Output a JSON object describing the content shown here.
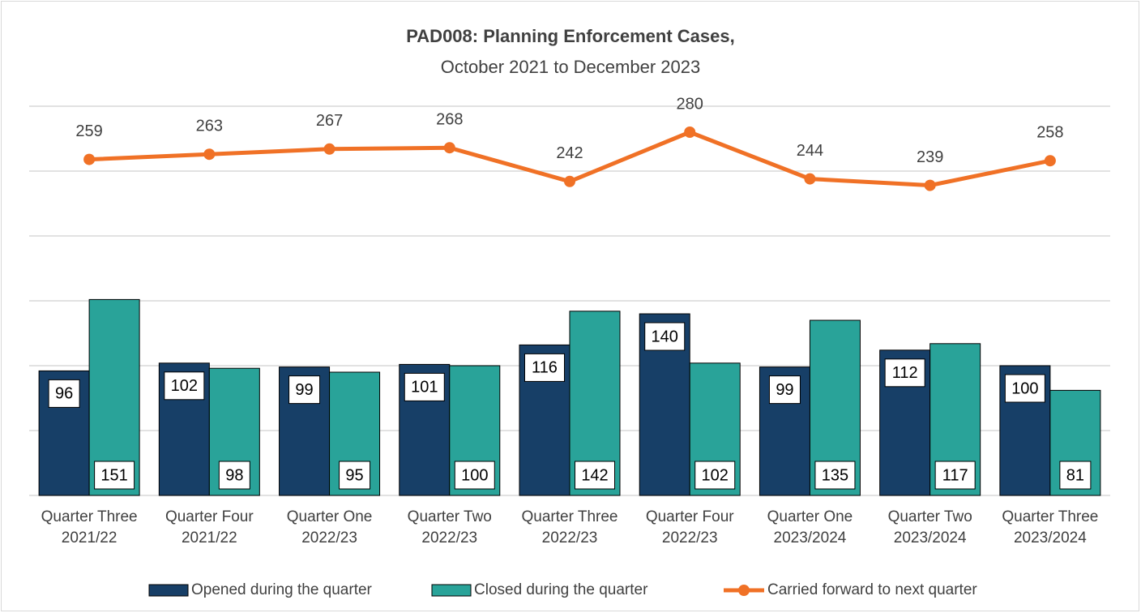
{
  "chart_data": {
    "type": "bar_line",
    "title": "PAD008: Planning Enforcement Cases,",
    "subtitle": "October 2021 to December 2023",
    "categories": [
      [
        "Quarter Three",
        "2021/22"
      ],
      [
        "Quarter Four",
        "2021/22"
      ],
      [
        "Quarter One",
        "2022/23"
      ],
      [
        "Quarter Two",
        "2022/23"
      ],
      [
        "Quarter Three",
        "2022/23"
      ],
      [
        "Quarter Four",
        "2022/23"
      ],
      [
        "Quarter One",
        "2023/2024"
      ],
      [
        "Quarter Two",
        "2023/2024"
      ],
      [
        "Quarter Three",
        "2023/2024"
      ]
    ],
    "series": [
      {
        "name": "Opened during the quarter",
        "type": "bar",
        "color": "#173f67",
        "values": [
          96,
          102,
          99,
          101,
          116,
          140,
          99,
          112,
          100
        ]
      },
      {
        "name": "Closed during the quarter",
        "type": "bar",
        "color": "#29a399",
        "values": [
          151,
          98,
          95,
          100,
          142,
          102,
          135,
          117,
          81
        ]
      },
      {
        "name": "Carried forward to next quarter",
        "type": "line",
        "color": "#f07126",
        "values": [
          259,
          263,
          267,
          268,
          242,
          280,
          244,
          239,
          258
        ]
      }
    ],
    "ylim": [
      0,
      300
    ],
    "yticks": [
      0,
      50,
      100,
      150,
      200,
      250,
      300
    ],
    "grid": true,
    "legend": "bottom"
  }
}
